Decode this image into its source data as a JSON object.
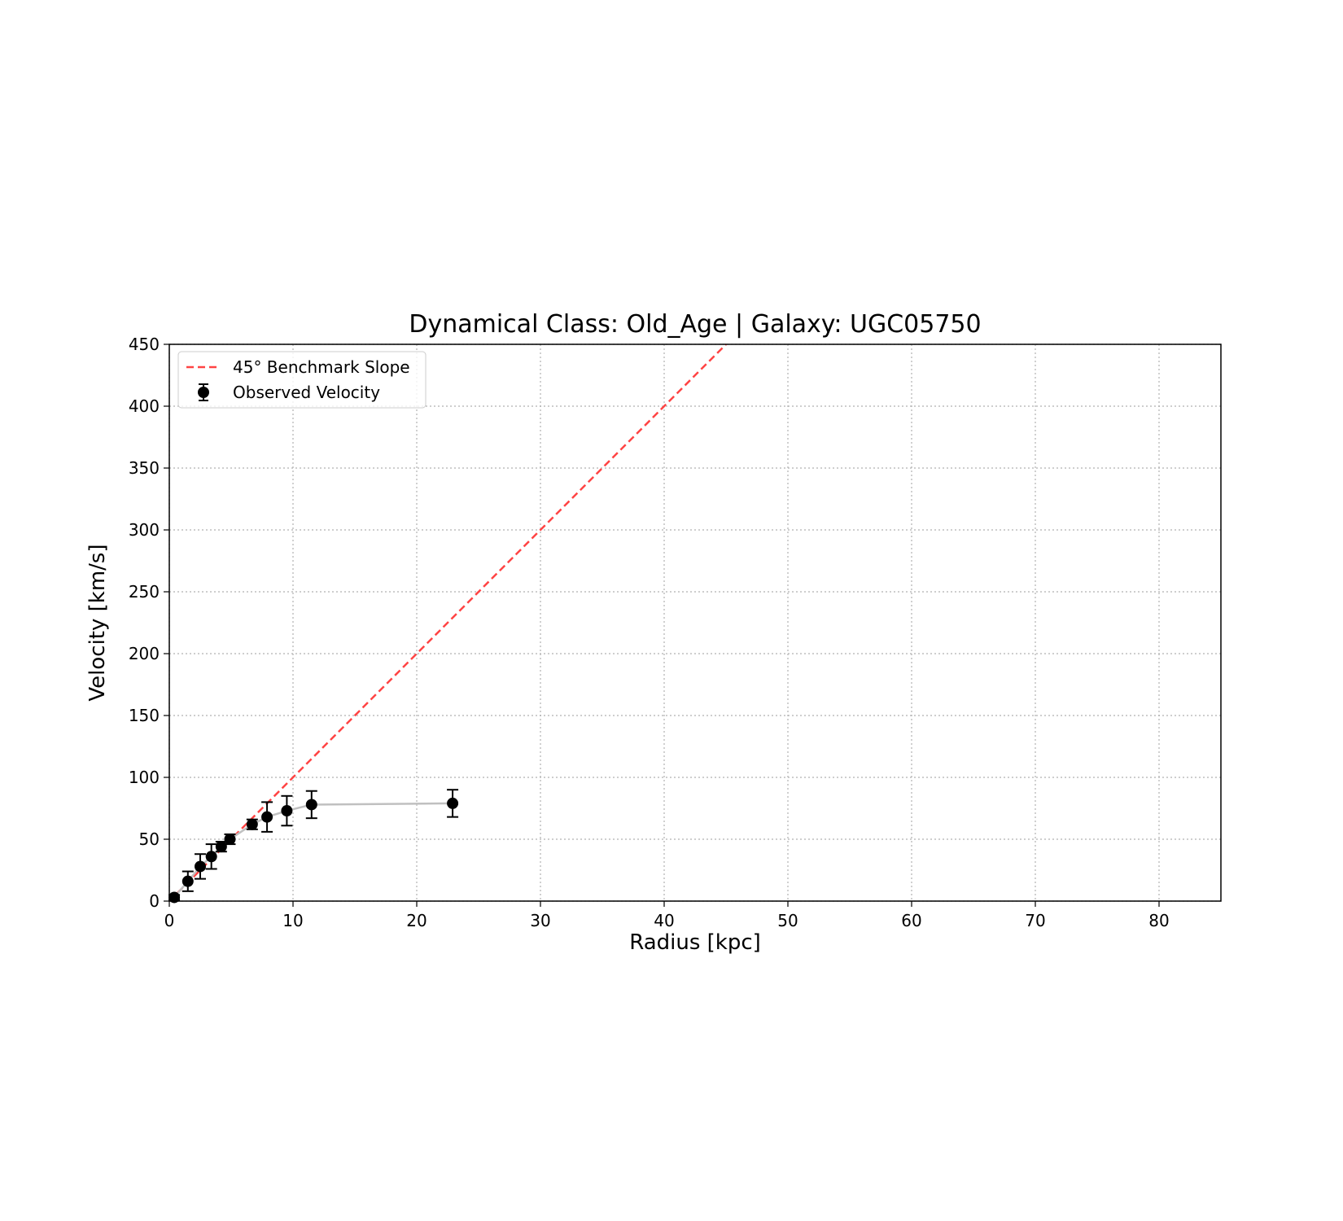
{
  "chart_data": {
    "type": "scatter",
    "title": "Dynamical Class: Old_Age | Galaxy: UGC05750",
    "xlabel": "Radius [kpc]",
    "ylabel": "Velocity [km/s]",
    "xlim": [
      0,
      85
    ],
    "ylim": [
      0,
      450
    ],
    "xticks": [
      0,
      10,
      20,
      30,
      40,
      50,
      60,
      70,
      80
    ],
    "yticks": [
      0,
      50,
      100,
      150,
      200,
      250,
      300,
      350,
      400,
      450
    ],
    "grid": true,
    "legend_position": "top-left",
    "series": [
      {
        "name": "45° Benchmark Slope",
        "kind": "line",
        "style": "dashed",
        "color": "#ff4444",
        "x": [
          0,
          45
        ],
        "y": [
          0,
          450
        ]
      },
      {
        "name": "Observed Velocity",
        "kind": "errorbar",
        "color": "#000000",
        "connector_color": "#c0c0c0",
        "x": [
          0.4,
          1.5,
          2.5,
          3.4,
          4.2,
          4.9,
          6.7,
          7.9,
          9.5,
          11.5,
          22.9
        ],
        "y": [
          3,
          16,
          28,
          36,
          44,
          50,
          62,
          68,
          73,
          78,
          79
        ],
        "yerr": [
          2,
          8,
          10,
          10,
          4,
          4,
          4,
          12,
          12,
          11,
          11
        ]
      }
    ]
  }
}
